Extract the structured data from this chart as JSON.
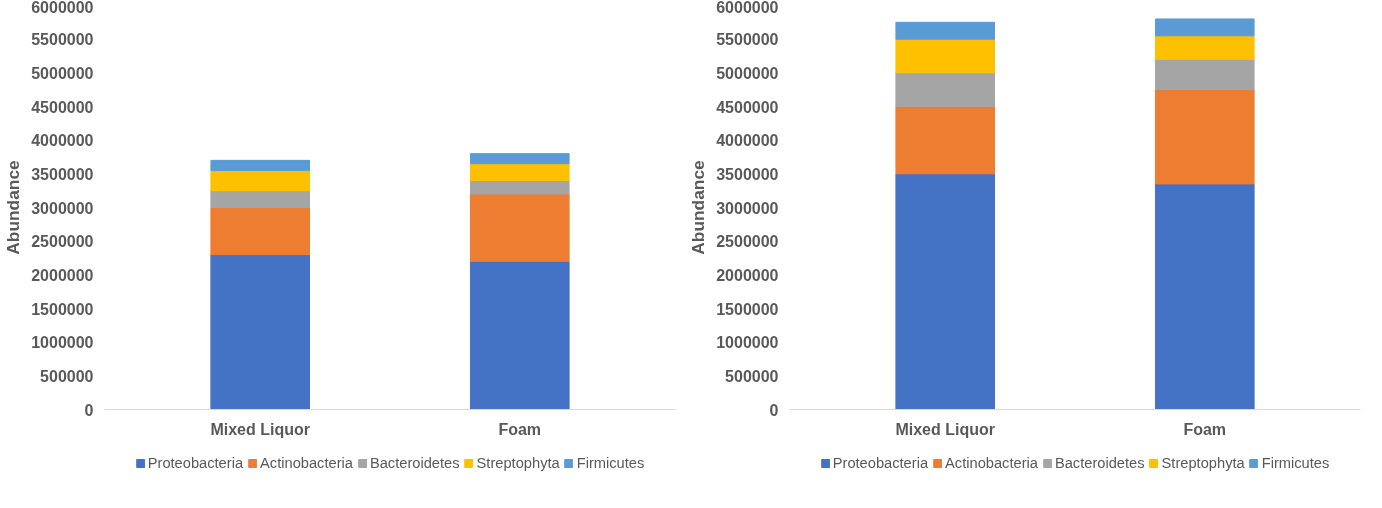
{
  "chart_data": [
    {
      "type": "bar",
      "stacked": true,
      "ylabel": "Abundance",
      "categories": [
        "Mixed Liquor",
        "Foam"
      ],
      "ylim": [
        0,
        6000000
      ],
      "yticks": [
        0,
        500000,
        1000000,
        1500000,
        2000000,
        2500000,
        3000000,
        3500000,
        4000000,
        4500000,
        5000000,
        5500000,
        6000000
      ],
      "grid": false,
      "legend": "bottom",
      "series": [
        {
          "name": "Proteobacteria",
          "color": "#4472c4",
          "values": [
            2300000,
            2200000
          ]
        },
        {
          "name": "Actinobacteria",
          "color": "#ed7d31",
          "values": [
            700000,
            1000000
          ]
        },
        {
          "name": "Bacteroidetes",
          "color": "#a5a5a5",
          "values": [
            250000,
            200000
          ]
        },
        {
          "name": "Streptophyta",
          "color": "#ffc000",
          "values": [
            300000,
            250000
          ]
        },
        {
          "name": "Firmicutes",
          "color": "#5b9bd5",
          "values": [
            150000,
            150000
          ]
        }
      ]
    },
    {
      "type": "bar",
      "stacked": true,
      "ylabel": "Abundance",
      "categories": [
        "Mixed Liquor",
        "Foam"
      ],
      "ylim": [
        0,
        6000000
      ],
      "yticks": [
        0,
        500000,
        1000000,
        1500000,
        2000000,
        2500000,
        3000000,
        3500000,
        4000000,
        4500000,
        5000000,
        5500000,
        6000000
      ],
      "grid": false,
      "legend": "bottom",
      "series": [
        {
          "name": "Proteobacteria",
          "color": "#4472c4",
          "values": [
            3500000,
            3350000
          ]
        },
        {
          "name": "Actinobacteria",
          "color": "#ed7d31",
          "values": [
            1000000,
            1400000
          ]
        },
        {
          "name": "Bacteroidetes",
          "color": "#a5a5a5",
          "values": [
            500000,
            450000
          ]
        },
        {
          "name": "Streptophyta",
          "color": "#ffc000",
          "values": [
            500000,
            350000
          ]
        },
        {
          "name": "Firmicutes",
          "color": "#5b9bd5",
          "values": [
            250000,
            250000
          ]
        }
      ]
    }
  ]
}
